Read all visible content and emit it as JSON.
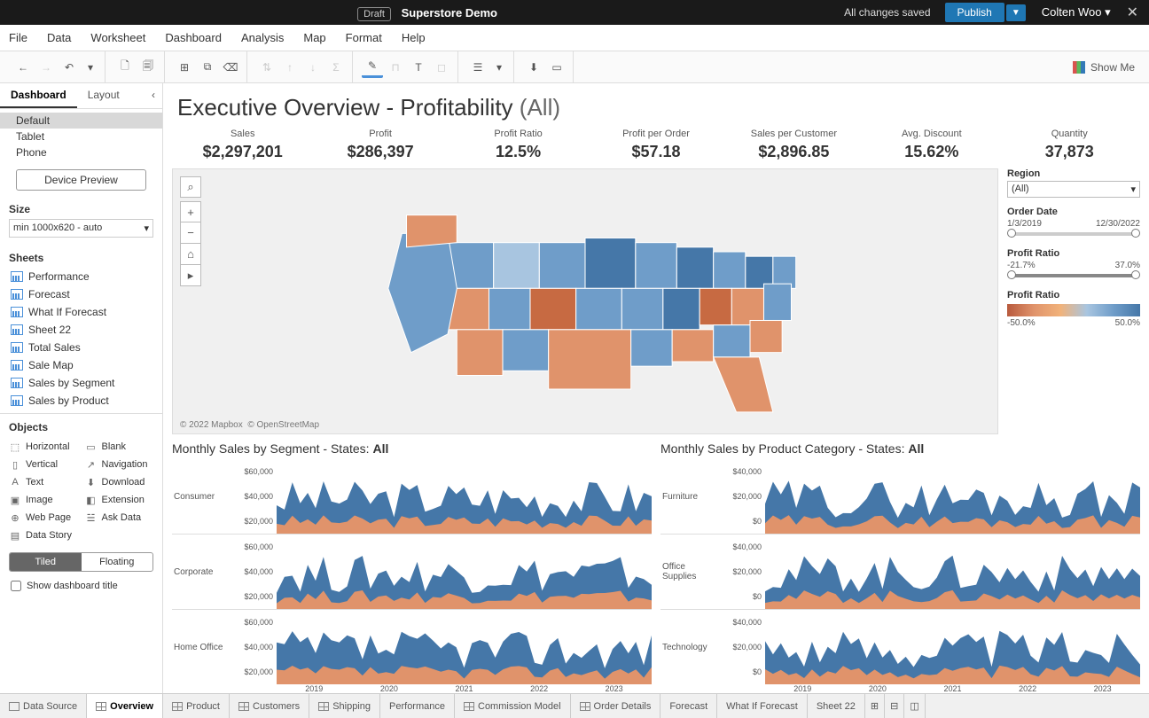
{
  "topbar": {
    "draft": "Draft",
    "title": "Superstore Demo",
    "saved": "All changes saved",
    "publish": "Publish",
    "user": "Colten Woo"
  },
  "menu": [
    "File",
    "Data",
    "Worksheet",
    "Dashboard",
    "Analysis",
    "Map",
    "Format",
    "Help"
  ],
  "showme": "Show Me",
  "left": {
    "tabs": {
      "dashboard": "Dashboard",
      "layout": "Layout"
    },
    "devices": [
      "Default",
      "Tablet",
      "Phone"
    ],
    "devicePreview": "Device Preview",
    "sizeLabel": "Size",
    "sizeValue": "min 1000x620 - auto",
    "sheetsLabel": "Sheets",
    "sheets": [
      "Performance",
      "Forecast",
      "What If Forecast",
      "Sheet 22",
      "Total Sales",
      "Sale Map",
      "Sales by Segment",
      "Sales by Product"
    ],
    "objectsLabel": "Objects",
    "objects": [
      {
        "icon": "⬚",
        "label": "Horizontal"
      },
      {
        "icon": "▭",
        "label": "Blank"
      },
      {
        "icon": "▯",
        "label": "Vertical"
      },
      {
        "icon": "↗",
        "label": "Navigation"
      },
      {
        "icon": "A",
        "label": "Text"
      },
      {
        "icon": "⬇",
        "label": "Download"
      },
      {
        "icon": "▣",
        "label": "Image"
      },
      {
        "icon": "◧",
        "label": "Extension"
      },
      {
        "icon": "⊕",
        "label": "Web Page"
      },
      {
        "icon": "☱",
        "label": "Ask Data"
      },
      {
        "icon": "▤",
        "label": "Data Story"
      }
    ],
    "tiled": "Tiled",
    "floating": "Floating",
    "showTitle": "Show dashboard title"
  },
  "dashboard": {
    "title": "Executive Overview - Profitability",
    "titleSuffix": "(All)",
    "kpis": [
      {
        "label": "Sales",
        "value": "$2,297,201"
      },
      {
        "label": "Profit",
        "value": "$286,397"
      },
      {
        "label": "Profit Ratio",
        "value": "12.5%"
      },
      {
        "label": "Profit per Order",
        "value": "$57.18"
      },
      {
        "label": "Sales per Customer",
        "value": "$2,896.85"
      },
      {
        "label": "Avg. Discount",
        "value": "15.62%"
      },
      {
        "label": "Quantity",
        "value": "37,873"
      }
    ],
    "map": {
      "attrib1": "© 2022 Mapbox",
      "attrib2": "© OpenStreetMap",
      "colors": {
        "neg": "#e0936b",
        "neg2": "#c76a42",
        "pos1": "#a8c5e0",
        "pos2": "#6f9dc9",
        "pos3": "#4577a8",
        "bg": "#eeeeee"
      }
    },
    "filters": {
      "region": {
        "label": "Region",
        "value": "(All)"
      },
      "orderDate": {
        "label": "Order Date",
        "from": "1/3/2019",
        "to": "12/30/2022"
      },
      "profitRatioRange": {
        "label": "Profit Ratio",
        "from": "-21.7%",
        "to": "37.0%"
      },
      "profitRatioLegend": {
        "label": "Profit Ratio",
        "from": "-50.0%",
        "to": "50.0%"
      }
    },
    "chartLeft": {
      "title": "Monthly Sales by Segment - States:",
      "suffix": "All",
      "rows": [
        "Consumer",
        "Corporate",
        "Home Office"
      ],
      "yticks": [
        "$60,000",
        "$40,000",
        "$20,000"
      ],
      "xticks": [
        "2019",
        "2020",
        "2021",
        "2022",
        "2023"
      ],
      "colors": {
        "top": "#4577a8",
        "bottom": "#e0936b"
      }
    },
    "chartRight": {
      "title": "Monthly Sales by Product Category - States:",
      "suffix": "All",
      "rows": [
        "Furniture",
        "Office Supplies",
        "Technology"
      ],
      "yticks": [
        "$40,000",
        "$20,000",
        "$0"
      ],
      "xticks": [
        "2019",
        "2020",
        "2021",
        "2022",
        "2023"
      ],
      "colors": {
        "top": "#4577a8",
        "bottom": "#e0936b"
      }
    }
  },
  "bottomTabs": [
    "Data Source",
    "Overview",
    "Product",
    "Customers",
    "Shipping",
    "Performance",
    "Commission Model",
    "Order Details",
    "Forecast",
    "What If Forecast",
    "Sheet 22"
  ]
}
